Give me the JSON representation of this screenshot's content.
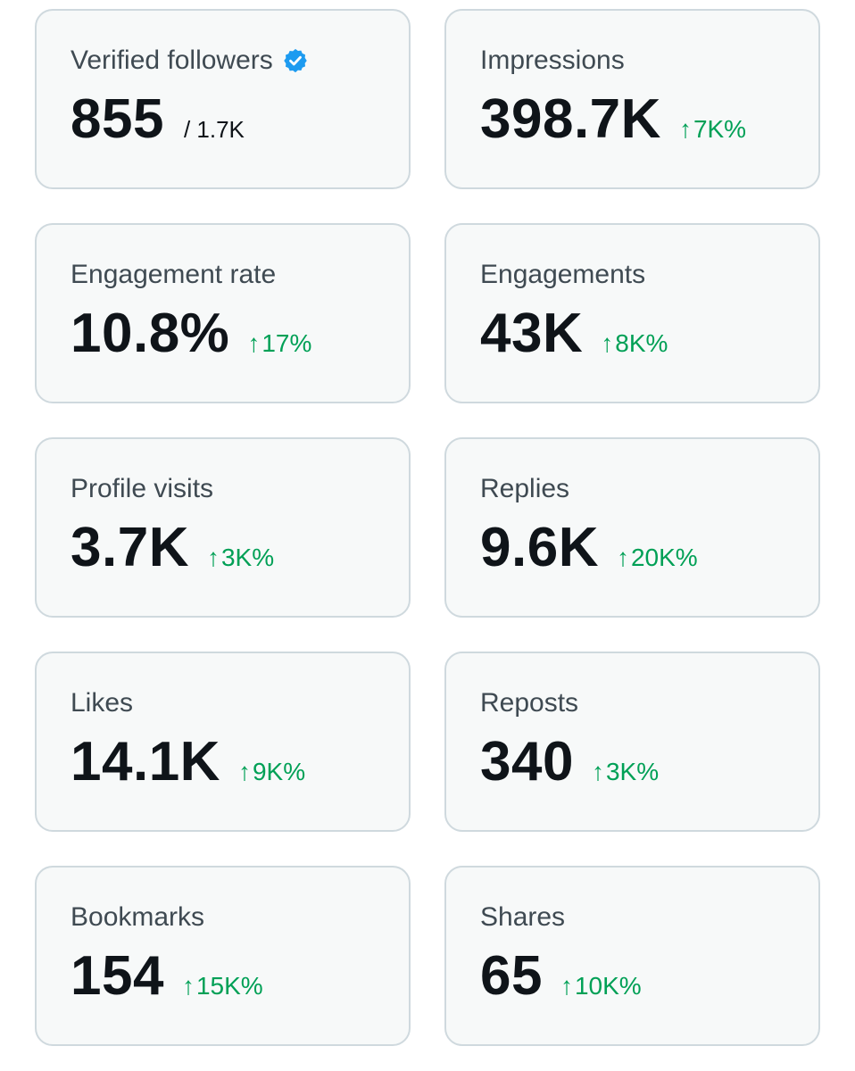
{
  "colors": {
    "card_bg": "#f7f9f9",
    "card_border": "#cfd9de",
    "label": "#3f4a52",
    "value": "#0f1419",
    "positive": "#00a056",
    "verified": "#1d9bf0"
  },
  "metrics": [
    {
      "label": "Verified followers",
      "value": "855",
      "sub": "/ 1.7K",
      "icon": "verified-badge-icon"
    },
    {
      "label": "Impressions",
      "value": "398.7K",
      "delta": "7K%",
      "delta_icon": "arrow-up-icon"
    },
    {
      "label": "Engagement rate",
      "value": "10.8%",
      "delta": "17%",
      "delta_icon": "arrow-up-icon"
    },
    {
      "label": "Engagements",
      "value": "43K",
      "delta": "8K%",
      "delta_icon": "arrow-up-icon"
    },
    {
      "label": "Profile visits",
      "value": "3.7K",
      "delta": "3K%",
      "delta_icon": "arrow-up-icon"
    },
    {
      "label": "Replies",
      "value": "9.6K",
      "delta": "20K%",
      "delta_icon": "arrow-up-icon"
    },
    {
      "label": "Likes",
      "value": "14.1K",
      "delta": "9K%",
      "delta_icon": "arrow-up-icon"
    },
    {
      "label": "Reposts",
      "value": "340",
      "delta": "3K%",
      "delta_icon": "arrow-up-icon"
    },
    {
      "label": "Bookmarks",
      "value": "154",
      "delta": "15K%",
      "delta_icon": "arrow-up-icon"
    },
    {
      "label": "Shares",
      "value": "65",
      "delta": "10K%",
      "delta_icon": "arrow-up-icon"
    }
  ]
}
